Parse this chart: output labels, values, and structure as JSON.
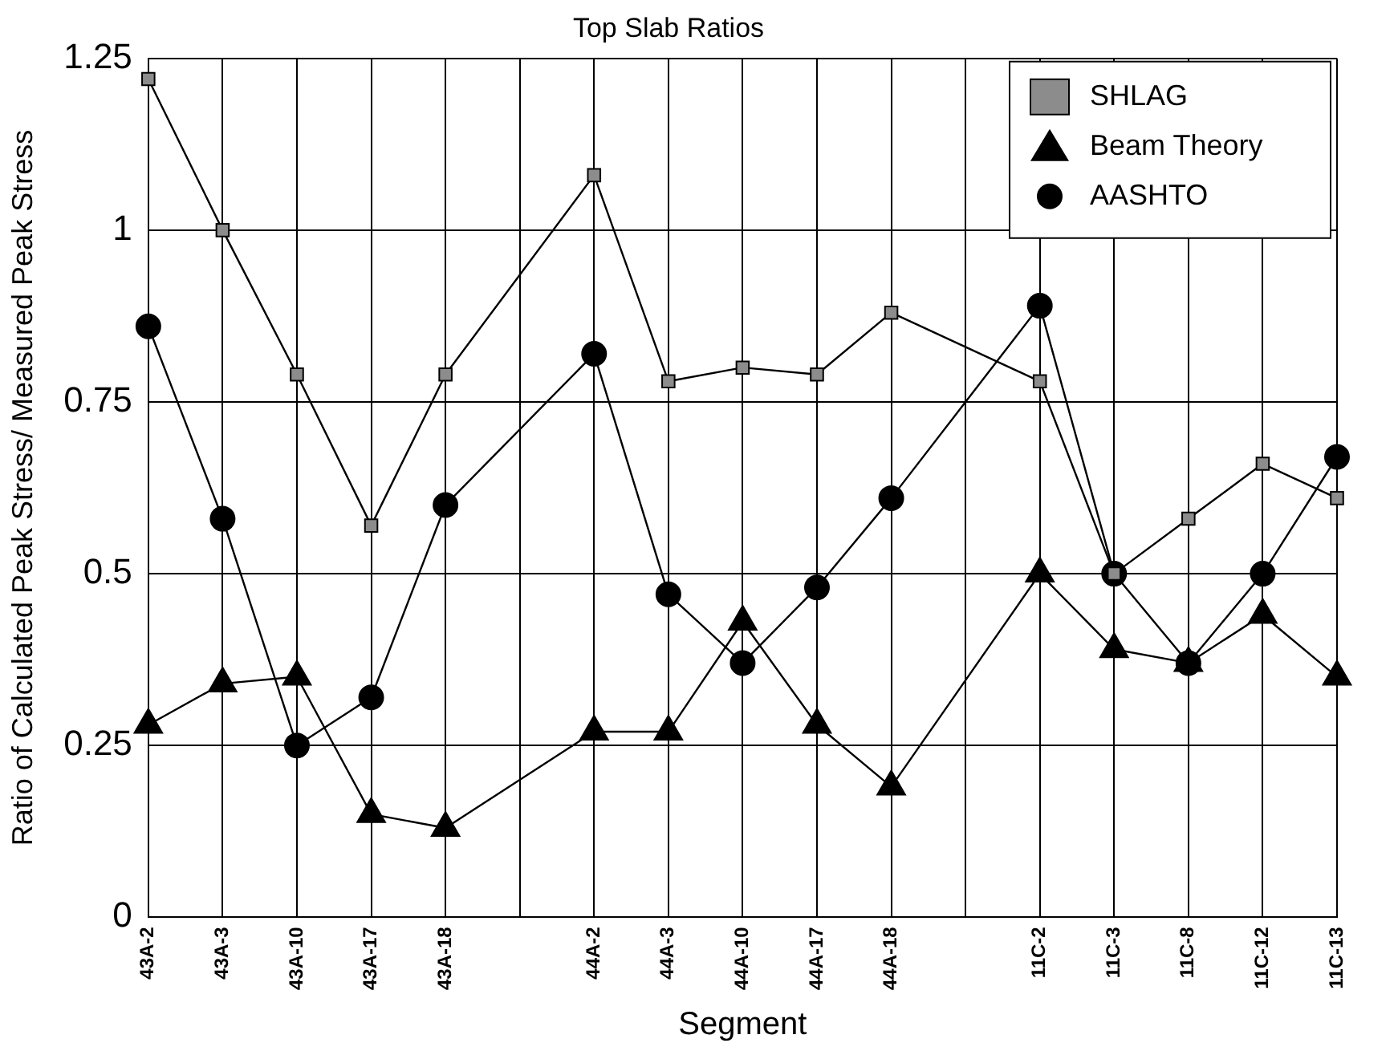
{
  "chart_data": {
    "type": "line",
    "title": "Top Slab Ratios",
    "xlabel": "Segment",
    "ylabel": "Ratio of Calculated Peak Stress/ Measured Peak Stress",
    "categories": [
      "43A-2",
      "43A-3",
      "43A-10",
      "43A-17",
      "43A-18",
      null,
      "44A-2",
      "44A-3",
      "44A-10",
      "44A-17",
      "44A-18",
      null,
      "11C-2",
      "11C-3",
      "11C-8",
      "11C-12",
      "11C-13"
    ],
    "series": [
      {
        "name": "SHLAG",
        "color": "#8c8c8c",
        "marker": "square",
        "values": [
          1.22,
          1.0,
          0.79,
          0.57,
          0.79,
          null,
          1.08,
          0.78,
          0.8,
          0.79,
          0.88,
          null,
          0.78,
          0.5,
          0.58,
          0.66,
          0.61
        ]
      },
      {
        "name": "Beam Theory",
        "color": "#000000",
        "marker": "triangle",
        "values": [
          0.28,
          0.34,
          0.35,
          0.15,
          0.13,
          null,
          0.27,
          0.27,
          0.43,
          0.28,
          0.19,
          null,
          0.5,
          0.39,
          0.37,
          0.44,
          0.35
        ]
      },
      {
        "name": "AASHTO",
        "color": "#000000",
        "marker": "circle",
        "values": [
          0.86,
          0.58,
          0.25,
          0.32,
          0.6,
          null,
          0.82,
          0.47,
          0.37,
          0.48,
          0.61,
          null,
          0.89,
          0.5,
          0.37,
          0.5,
          0.67
        ]
      }
    ],
    "ylim": [
      0,
      1.25
    ],
    "yticks": [
      0,
      0.25,
      0.5,
      0.75,
      1,
      1.25
    ],
    "grid": true,
    "legend": "top right",
    "line_style": "solid"
  }
}
